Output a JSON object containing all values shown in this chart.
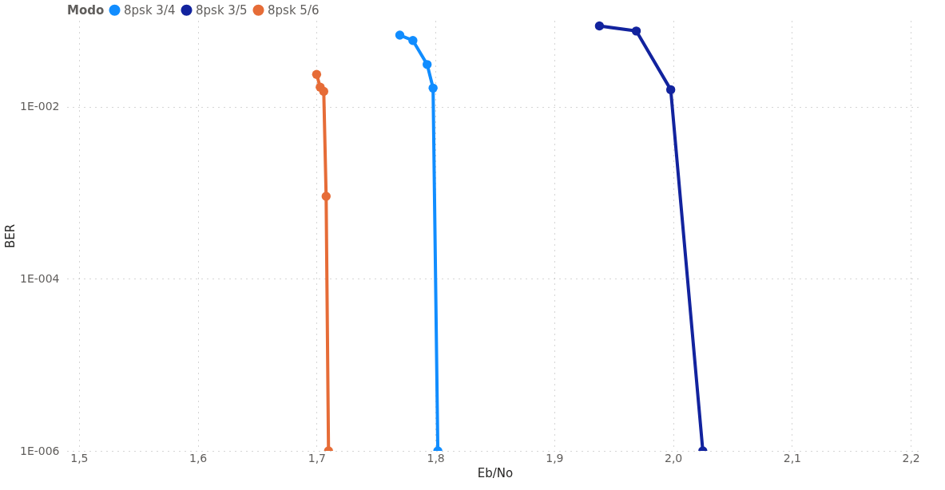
{
  "chart_data": {
    "type": "line",
    "xlabel": "Eb/No",
    "ylabel": "BER",
    "legend_title": "Modo",
    "legend": "top left",
    "grid": true,
    "log": "y",
    "marker": "circle",
    "line_style": "solid",
    "xlim": [
      1.49,
      2.21
    ],
    "ylim": [
      1e-06,
      0.1
    ],
    "xticks": [
      {
        "value": 1.5,
        "label": "1,5"
      },
      {
        "value": 1.6,
        "label": "1,6"
      },
      {
        "value": 1.7,
        "label": "1,7"
      },
      {
        "value": 1.8,
        "label": "1,8"
      },
      {
        "value": 1.9,
        "label": "1,9"
      },
      {
        "value": 2.0,
        "label": "2,0"
      },
      {
        "value": 2.1,
        "label": "2,1"
      },
      {
        "value": 2.2,
        "label": "2,2"
      }
    ],
    "yticks": [
      {
        "value": 1e-06,
        "label": "1E-006"
      },
      {
        "value": 0.0001,
        "label": "1E-004"
      },
      {
        "value": 0.01,
        "label": "1E-002"
      }
    ],
    "series": [
      {
        "name": "8psk 3/4",
        "color": "#118dff",
        "x": [
          1.77,
          1.781,
          1.793,
          1.798,
          1.802
        ],
        "values": [
          0.068,
          0.059,
          0.031,
          0.0165,
          1e-06
        ]
      },
      {
        "name": "8psk 3/5",
        "color": "#12239e",
        "x": [
          1.938,
          1.969,
          1.998,
          2.025
        ],
        "values": [
          0.087,
          0.076,
          0.0158,
          1e-06
        ]
      },
      {
        "name": "8psk 5/6",
        "color": "#e66c37",
        "x": [
          1.7,
          1.703,
          1.706,
          1.708,
          1.71
        ],
        "values": [
          0.0238,
          0.0169,
          0.0151,
          0.00091,
          1e-06
        ]
      }
    ]
  }
}
